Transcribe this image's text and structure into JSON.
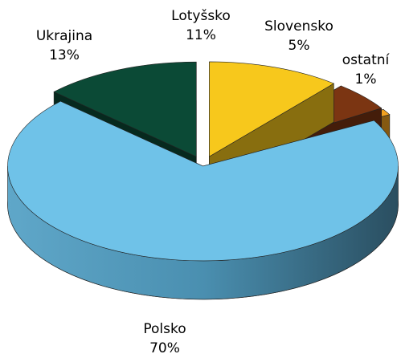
{
  "chart_data": {
    "type": "pie3d",
    "categories": [
      "Lotyšsko",
      "Slovensko",
      "ostatní",
      "Polsko",
      "Ukrajina"
    ],
    "values": [
      11,
      5,
      1,
      70,
      13
    ],
    "value_labels": [
      "11%",
      "5%",
      "1%",
      "70%",
      "13%"
    ],
    "colors": [
      "#f7c81c",
      "#7b3512",
      "#f2a11f",
      "#6fc2e8",
      "#0b4a36"
    ]
  }
}
